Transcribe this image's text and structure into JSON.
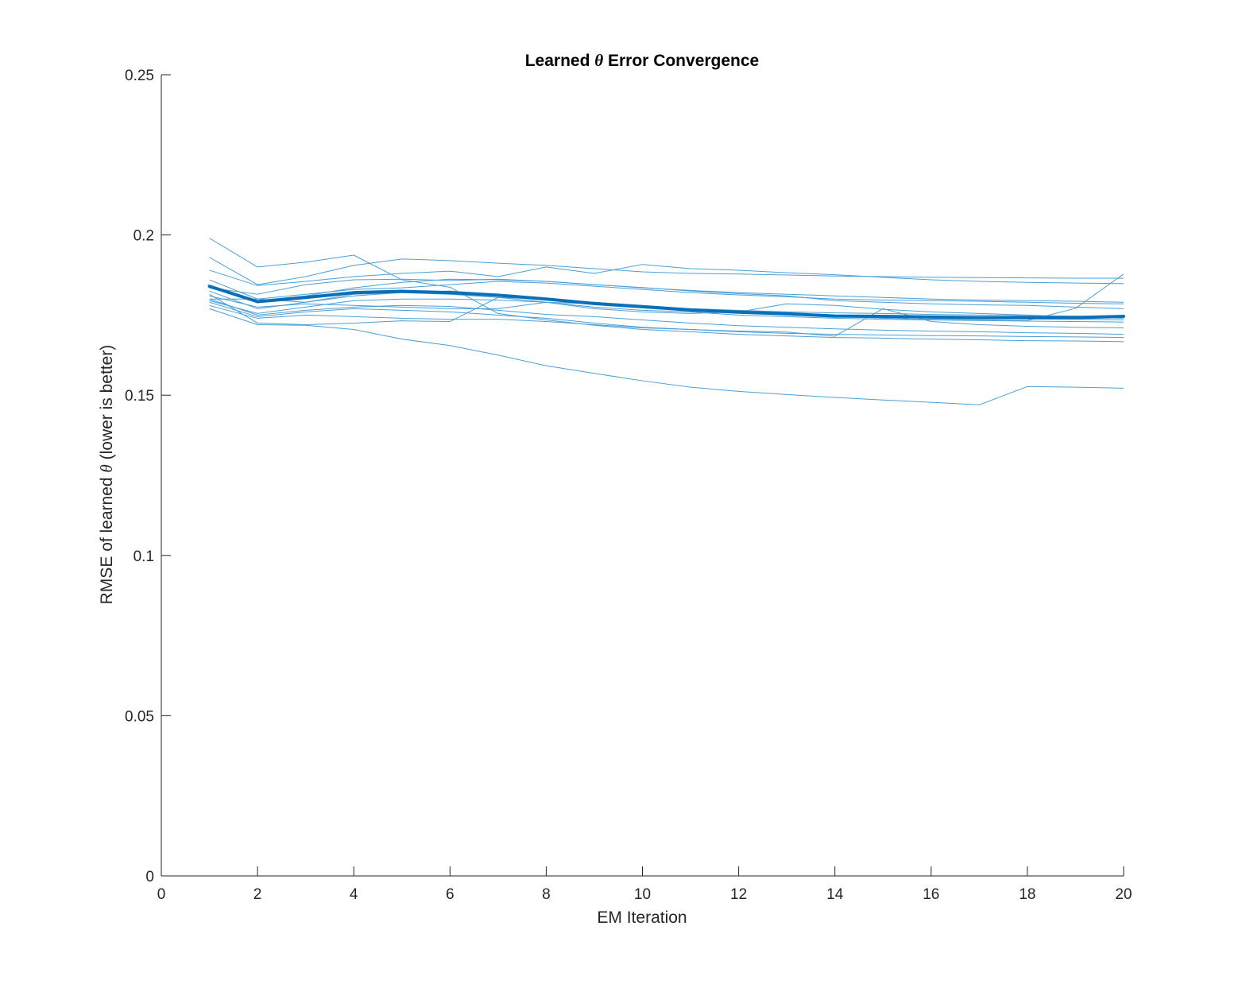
{
  "chart_data": {
    "type": "line",
    "title_prefix": "Learned ",
    "title_symbol": "θ",
    "title_suffix": " Error Convergence",
    "xlabel": "EM Iteration",
    "ylabel_prefix": "RMSE of learned ",
    "ylabel_symbol": "θ",
    "ylabel_suffix": " (lower is better)",
    "xlim": [
      0,
      20
    ],
    "ylim": [
      0,
      0.25
    ],
    "xticks": [
      0,
      2,
      4,
      6,
      8,
      10,
      12,
      14,
      16,
      18,
      20
    ],
    "xtick_labels": [
      "0",
      "2",
      "4",
      "6",
      "8",
      "10",
      "12",
      "14",
      "16",
      "18",
      "20"
    ],
    "yticks": [
      0,
      0.05,
      0.1,
      0.15,
      0.2,
      0.25
    ],
    "ytick_labels": [
      "0",
      "0.05",
      "0.1",
      "0.15",
      "0.2",
      "0.25"
    ],
    "grid": false,
    "legend": "none",
    "x": [
      1,
      2,
      3,
      4,
      5,
      6,
      7,
      8,
      9,
      10,
      11,
      12,
      13,
      14,
      15,
      16,
      17,
      18,
      19,
      20
    ],
    "series_color": "#4a9fd8",
    "mean_color": "#0b6fb8",
    "series": [
      {
        "values": [
          0.199,
          0.19,
          0.1915,
          0.1937,
          0.186,
          0.1837,
          0.1755,
          0.1735,
          0.1718,
          0.1705,
          0.1698,
          0.169,
          0.1685,
          0.168,
          0.1678,
          0.1675,
          0.1673,
          0.167,
          0.1669,
          0.1667
        ]
      },
      {
        "values": [
          0.193,
          0.1845,
          0.187,
          0.1905,
          0.1925,
          0.192,
          0.1912,
          0.1905,
          0.1895,
          0.1885,
          0.188,
          0.1878,
          0.1875,
          0.1872,
          0.187,
          0.1868,
          0.1867,
          0.1866,
          0.1865,
          0.1865
        ]
      },
      {
        "values": [
          0.189,
          0.1842,
          0.1855,
          0.187,
          0.188,
          0.1887,
          0.187,
          0.19,
          0.188,
          0.1908,
          0.1895,
          0.189,
          0.1882,
          0.1876,
          0.1868,
          0.186,
          0.1855,
          0.1852,
          0.185,
          0.1848
        ]
      },
      {
        "values": [
          0.186,
          0.18,
          0.1815,
          0.183,
          0.1835,
          0.1845,
          0.1855,
          0.185,
          0.184,
          0.183,
          0.182,
          0.1813,
          0.1807,
          0.18,
          0.1797,
          0.1795,
          0.1793,
          0.179,
          0.1787,
          0.1785
        ]
      },
      {
        "values": [
          0.1835,
          0.1815,
          0.1845,
          0.186,
          0.1862,
          0.1858,
          0.1862,
          0.1855,
          0.1845,
          0.1836,
          0.1825,
          0.1817,
          0.181,
          0.1795,
          0.179,
          0.1785,
          0.1782,
          0.178,
          0.1775,
          0.177
        ]
      },
      {
        "values": [
          0.1825,
          0.177,
          0.179,
          0.181,
          0.182,
          0.1825,
          0.1815,
          0.1797,
          0.179,
          0.178,
          0.177,
          0.1763,
          0.1757,
          0.175,
          0.1747,
          0.1743,
          0.174,
          0.1738,
          0.1737,
          0.1735
        ]
      },
      {
        "values": [
          0.181,
          0.1775,
          0.1785,
          0.178,
          0.1775,
          0.177,
          0.177,
          0.179,
          0.177,
          0.176,
          0.1755,
          0.176,
          0.1785,
          0.178,
          0.1768,
          0.176,
          0.1755,
          0.175,
          0.1745,
          0.174
        ]
      },
      {
        "values": [
          0.18,
          0.175,
          0.1765,
          0.1775,
          0.178,
          0.1777,
          0.1765,
          0.1752,
          0.1745,
          0.1735,
          0.1725,
          0.1717,
          0.1712,
          0.1707,
          0.1703,
          0.17,
          0.1698,
          0.1695,
          0.1693,
          0.169
        ]
      },
      {
        "values": [
          0.179,
          0.1745,
          0.176,
          0.177,
          0.1765,
          0.176,
          0.175,
          0.174,
          0.1725,
          0.1712,
          0.1705,
          0.1698,
          0.1693,
          0.169,
          0.1688,
          0.1686,
          0.1685,
          0.1683,
          0.1682,
          0.168
        ]
      },
      {
        "values": [
          0.1795,
          0.1755,
          0.1775,
          0.1795,
          0.18,
          0.18,
          0.1797,
          0.179,
          0.1775,
          0.1765,
          0.176,
          0.175,
          0.1745,
          0.174,
          0.1737,
          0.1735,
          0.1733,
          0.1731,
          0.173,
          0.1728
        ]
      },
      {
        "values": [
          0.178,
          0.174,
          0.175,
          0.1745,
          0.174,
          0.1737,
          0.1737,
          0.173,
          0.172,
          0.171,
          0.1705,
          0.17,
          0.1697,
          0.1684,
          0.177,
          0.173,
          0.172,
          0.1715,
          0.1712,
          0.171
        ]
      },
      {
        "values": [
          0.177,
          0.172,
          0.1718,
          0.1705,
          0.1675,
          0.1655,
          0.1625,
          0.1592,
          0.1568,
          0.1545,
          0.1525,
          0.1512,
          0.1502,
          0.1493,
          0.1485,
          0.1478,
          0.147,
          0.1527,
          0.1525,
          0.1522
        ]
      },
      {
        "values": [
          0.1815,
          0.1725,
          0.172,
          0.1725,
          0.1732,
          0.173,
          0.1805,
          0.18,
          0.1785,
          0.1778,
          0.177,
          0.1765,
          0.176,
          0.1757,
          0.1755,
          0.1752,
          0.175,
          0.1748,
          0.1747,
          0.1745
        ]
      },
      {
        "values": [
          0.1835,
          0.1795,
          0.181,
          0.1835,
          0.1852,
          0.1862,
          0.186,
          0.1855,
          0.1845,
          0.1835,
          0.1827,
          0.182,
          0.1815,
          0.181,
          0.1805,
          0.18,
          0.1797,
          0.1795,
          0.1793,
          0.179
        ]
      },
      {
        "values": [
          0.18,
          0.18,
          0.179,
          0.1815,
          0.182,
          0.1815,
          0.1805,
          0.179,
          0.1785,
          0.1775,
          0.1765,
          0.1757,
          0.175,
          0.1745,
          0.174,
          0.1737,
          0.1735,
          0.1733,
          0.1771,
          0.1878
        ]
      }
    ],
    "mean": {
      "values": [
        0.184,
        0.1792,
        0.1805,
        0.182,
        0.1824,
        0.182,
        0.1812,
        0.18,
        0.1786,
        0.1776,
        0.1766,
        0.1759,
        0.1754,
        0.1747,
        0.1746,
        0.1744,
        0.1742,
        0.1742,
        0.1742,
        0.1746
      ]
    }
  }
}
